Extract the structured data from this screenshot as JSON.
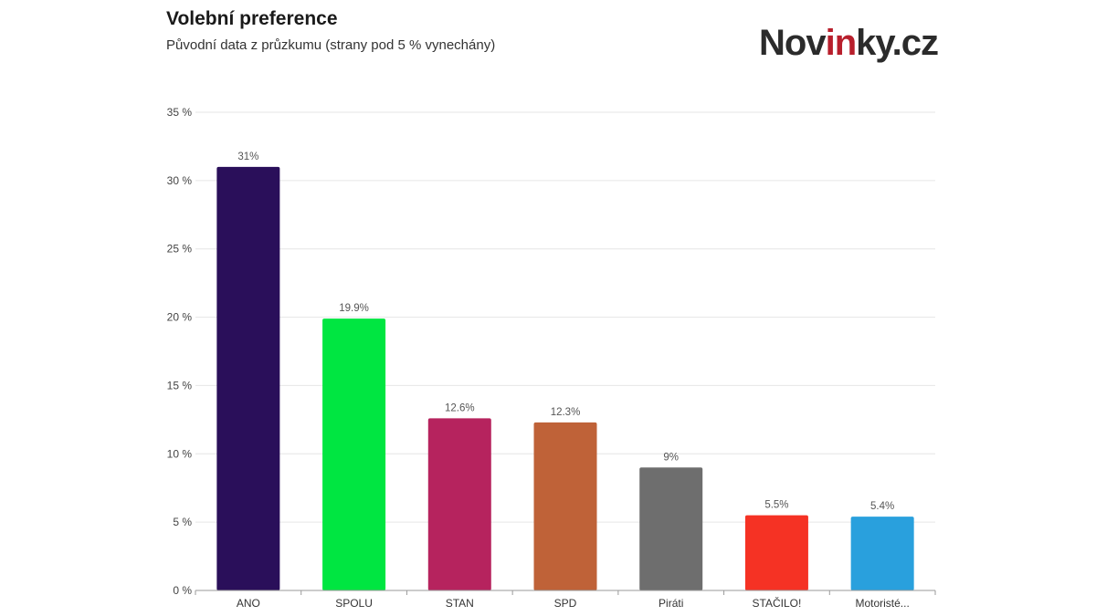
{
  "header": {
    "title": "Volební preference",
    "subtitle": "Původní data z průzkumu (strany pod 5 % vynechány)"
  },
  "logo": {
    "part1": "Nov",
    "part2": "in",
    "part3": "ky.cz",
    "accent_color": "#b81f2c"
  },
  "chart_data": {
    "type": "bar",
    "title": "Volební preference",
    "subtitle": "Původní data z průzkumu (strany pod 5 % vynechány)",
    "xlabel": "",
    "ylabel": "",
    "ylim": [
      0,
      35
    ],
    "y_ticks": [
      0,
      5,
      10,
      15,
      20,
      25,
      30,
      35
    ],
    "y_tick_labels": [
      "0 %",
      "5 %",
      "10 %",
      "15 %",
      "20 %",
      "25 %",
      "30 %",
      "35 %"
    ],
    "grid": true,
    "categories": [
      "ANO",
      "SPOLU",
      "STAN",
      "SPD",
      "Piráti",
      "STAČILO!",
      "Motoristé..."
    ],
    "values": [
      31,
      19.9,
      12.6,
      12.3,
      9,
      5.5,
      5.4
    ],
    "value_labels": [
      "31%",
      "19.9%",
      "12.6%",
      "12.3%",
      "9%",
      "5.5%",
      "5.4%"
    ],
    "colors": [
      "#2a0f5a",
      "#00e641",
      "#b6235e",
      "#bf6238",
      "#6e6e6e",
      "#f53224",
      "#29a0dd"
    ]
  }
}
